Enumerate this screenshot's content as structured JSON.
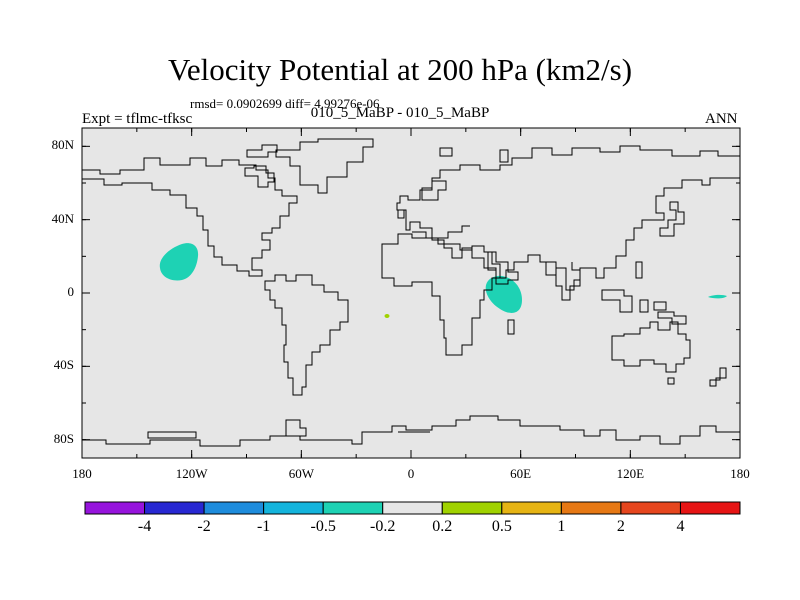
{
  "title": "Velocity Potential at 200 hPa (km2/s)",
  "stats": "rmsd= 0.0902699 diff= 4.99276e-06",
  "subtitle": "010_5_MaBP - 010_5_MaBP",
  "experiment": "Expt = tflmc-tfksc",
  "season": "ANN",
  "map": {
    "lat_ticks": [
      {
        "value": 80,
        "label": "80N"
      },
      {
        "value": 40,
        "label": "40N"
      },
      {
        "value": 0,
        "label": "0"
      },
      {
        "value": -40,
        "label": "40S"
      },
      {
        "value": -80,
        "label": "80S"
      }
    ],
    "lon_ticks": [
      {
        "value": -180,
        "label": "180"
      },
      {
        "value": -120,
        "label": "120W"
      },
      {
        "value": -60,
        "label": "60W"
      },
      {
        "value": 0,
        "label": "0"
      },
      {
        "value": 60,
        "label": "60E"
      },
      {
        "value": 120,
        "label": "120E"
      },
      {
        "value": 180,
        "label": "180"
      }
    ],
    "lon_range": [
      -180,
      180
    ],
    "lat_range": [
      -90,
      90
    ],
    "background_color": "#e6e6e6",
    "anomalies": [
      {
        "name": "eastern-pacific-negative",
        "lon": -137,
        "lat": 18,
        "color": "#1ed2b4"
      },
      {
        "name": "indian-ocean-negative",
        "lon": 53,
        "lat": 1,
        "color": "#1ed2b4"
      },
      {
        "name": "western-pacific-negative",
        "lon": 168,
        "lat": 1,
        "color": "#1ed2b4"
      },
      {
        "name": "atlantic-positive",
        "lon": -13,
        "lat": -11,
        "color": "#a0d200"
      }
    ]
  },
  "colorbar": {
    "colors": [
      "#9614dc",
      "#2828d2",
      "#1e8cdc",
      "#14b4dc",
      "#1ed2b4",
      "#e6e6e6",
      "#a0d200",
      "#e6b414",
      "#e67814",
      "#e6461e",
      "#e61414"
    ],
    "labels": [
      "-4",
      "-2",
      "-1",
      "-0.5",
      "-0.2",
      "0.2",
      "0.5",
      "1",
      "2",
      "4"
    ]
  }
}
